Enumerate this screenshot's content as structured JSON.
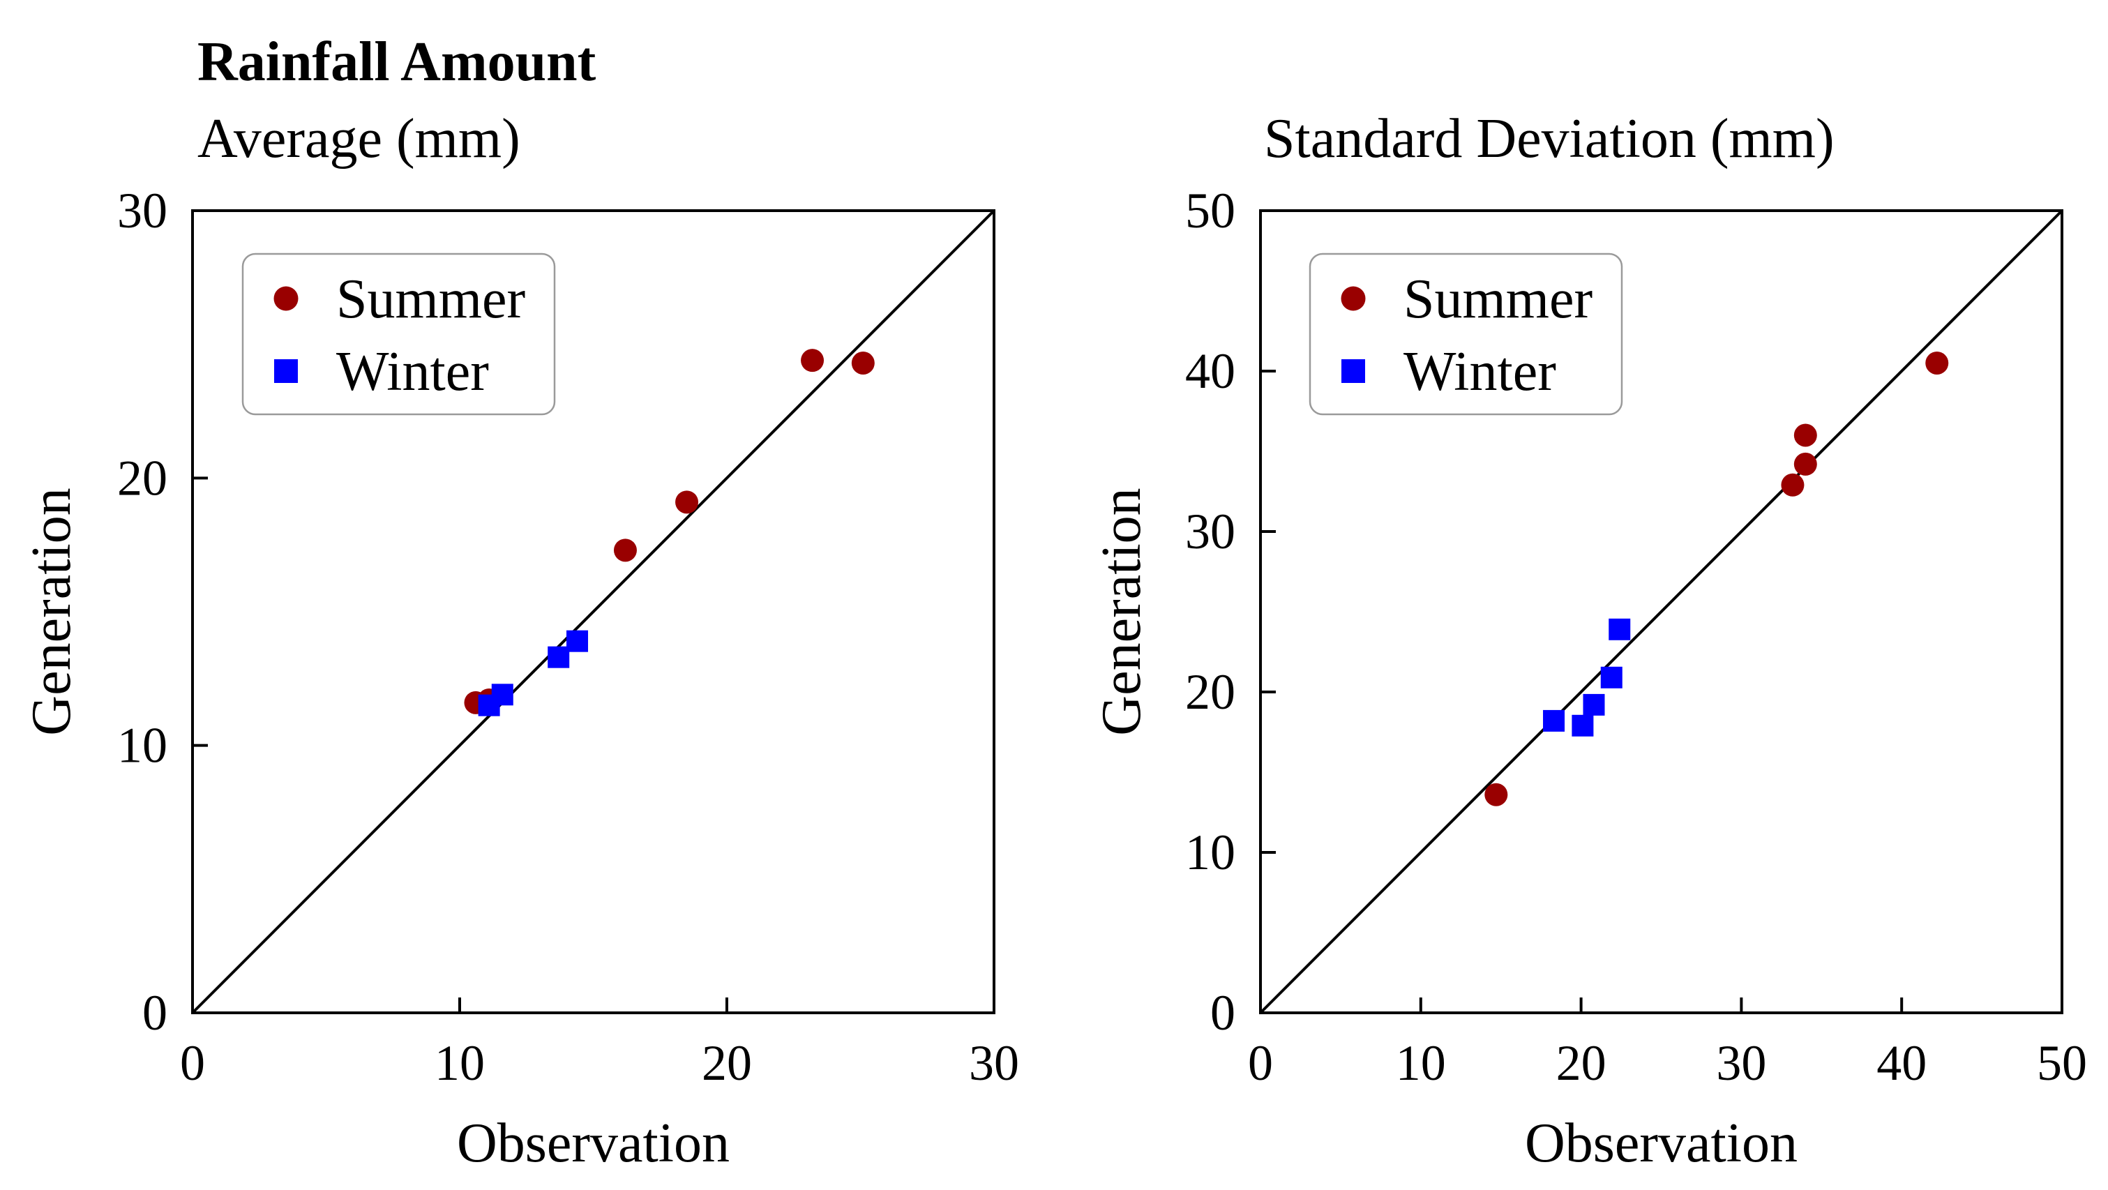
{
  "figure_title": "Rainfall Amount",
  "colors": {
    "summer": "#990000",
    "winter": "#0000ff",
    "axis": "#000000",
    "legend_border": "#9a9a9a"
  },
  "chart_data": [
    {
      "type": "scatter",
      "title": "Average (mm)",
      "xlabel": "Observation",
      "ylabel": "Generation",
      "xlim": [
        0,
        30
      ],
      "ylim": [
        0,
        30
      ],
      "xticks": [
        0,
        10,
        20,
        30
      ],
      "yticks": [
        0,
        10,
        20,
        30
      ],
      "reference_line": "y = x",
      "legend": {
        "placement": "top-left",
        "entries": [
          "Summer",
          "Winter"
        ]
      },
      "series": [
        {
          "name": "Summer",
          "marker": "circle",
          "points": [
            [
              10.6,
              11.6
            ],
            [
              11.1,
              11.7
            ],
            [
              16.2,
              17.3
            ],
            [
              18.5,
              19.1
            ],
            [
              23.2,
              24.4
            ],
            [
              25.1,
              24.3
            ]
          ]
        },
        {
          "name": "Winter",
          "marker": "square",
          "points": [
            [
              11.1,
              11.5
            ],
            [
              11.6,
              11.9
            ],
            [
              13.7,
              13.3
            ],
            [
              14.4,
              13.9
            ]
          ]
        }
      ]
    },
    {
      "type": "scatter",
      "title": "Standard Deviation (mm)",
      "xlabel": "Observation",
      "ylabel": "Generation",
      "xlim": [
        0,
        50
      ],
      "ylim": [
        0,
        50
      ],
      "xticks": [
        0,
        10,
        20,
        30,
        40,
        50
      ],
      "yticks": [
        0,
        10,
        20,
        30,
        40,
        50
      ],
      "reference_line": "y = x",
      "legend": {
        "placement": "top-left",
        "entries": [
          "Summer",
          "Winter"
        ]
      },
      "series": [
        {
          "name": "Summer",
          "marker": "circle",
          "points": [
            [
              14.7,
              13.6
            ],
            [
              33.2,
              32.9
            ],
            [
              34.0,
              34.2
            ],
            [
              34.0,
              36.0
            ],
            [
              42.2,
              40.5
            ]
          ]
        },
        {
          "name": "Winter",
          "marker": "square",
          "points": [
            [
              18.3,
              18.2
            ],
            [
              20.1,
              17.9
            ],
            [
              20.8,
              19.2
            ],
            [
              21.9,
              20.9
            ],
            [
              22.4,
              23.9
            ]
          ]
        }
      ]
    }
  ]
}
